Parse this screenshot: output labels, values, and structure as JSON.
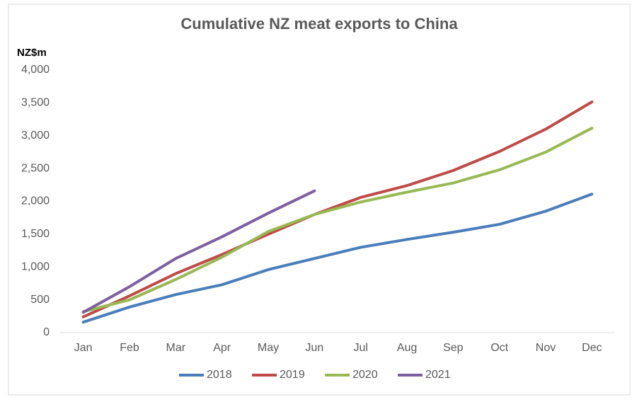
{
  "chart_data": {
    "type": "line",
    "title": "Cumulative NZ meat exports to China",
    "y_label": "NZ$m",
    "categories": [
      "Jan",
      "Feb",
      "Mar",
      "Apr",
      "May",
      "Jun",
      "Jul",
      "Aug",
      "Sep",
      "Oct",
      "Nov",
      "Dec"
    ],
    "series": [
      {
        "name": "2018",
        "color": "#4a7ebb",
        "values": [
          160,
          390,
          580,
          730,
          960,
          1130,
          1300,
          1420,
          1530,
          1650,
          1850,
          2110
        ]
      },
      {
        "name": "2019",
        "color": "#be4b48",
        "values": [
          240,
          560,
          900,
          1190,
          1500,
          1800,
          2060,
          2240,
          2470,
          2760,
          3100,
          3515
        ]
      },
      {
        "name": "2020",
        "color": "#98b954",
        "values": [
          320,
          500,
          810,
          1150,
          1540,
          1800,
          1990,
          2140,
          2280,
          2480,
          2750,
          3115
        ]
      },
      {
        "name": "2021",
        "color": "#7d60a0",
        "values": [
          310,
          700,
          1130,
          1460,
          1820,
          2160,
          null,
          null,
          null,
          null,
          null,
          null
        ]
      }
    ],
    "ylim": [
      0,
      4000
    ],
    "yticks": [
      0,
      500,
      {
        "value": 1000,
        "label": "1,000"
      },
      {
        "value": 1500,
        "label": "1,500"
      },
      {
        "value": 2000,
        "label": "2,000"
      },
      {
        "value": 2500,
        "label": "2,500"
      },
      {
        "value": 3000,
        "label": "3,000"
      },
      {
        "value": 3500,
        "label": "3,500"
      },
      {
        "value": 4000,
        "label": "4,000"
      }
    ],
    "grid": false,
    "legend": "bottom"
  }
}
